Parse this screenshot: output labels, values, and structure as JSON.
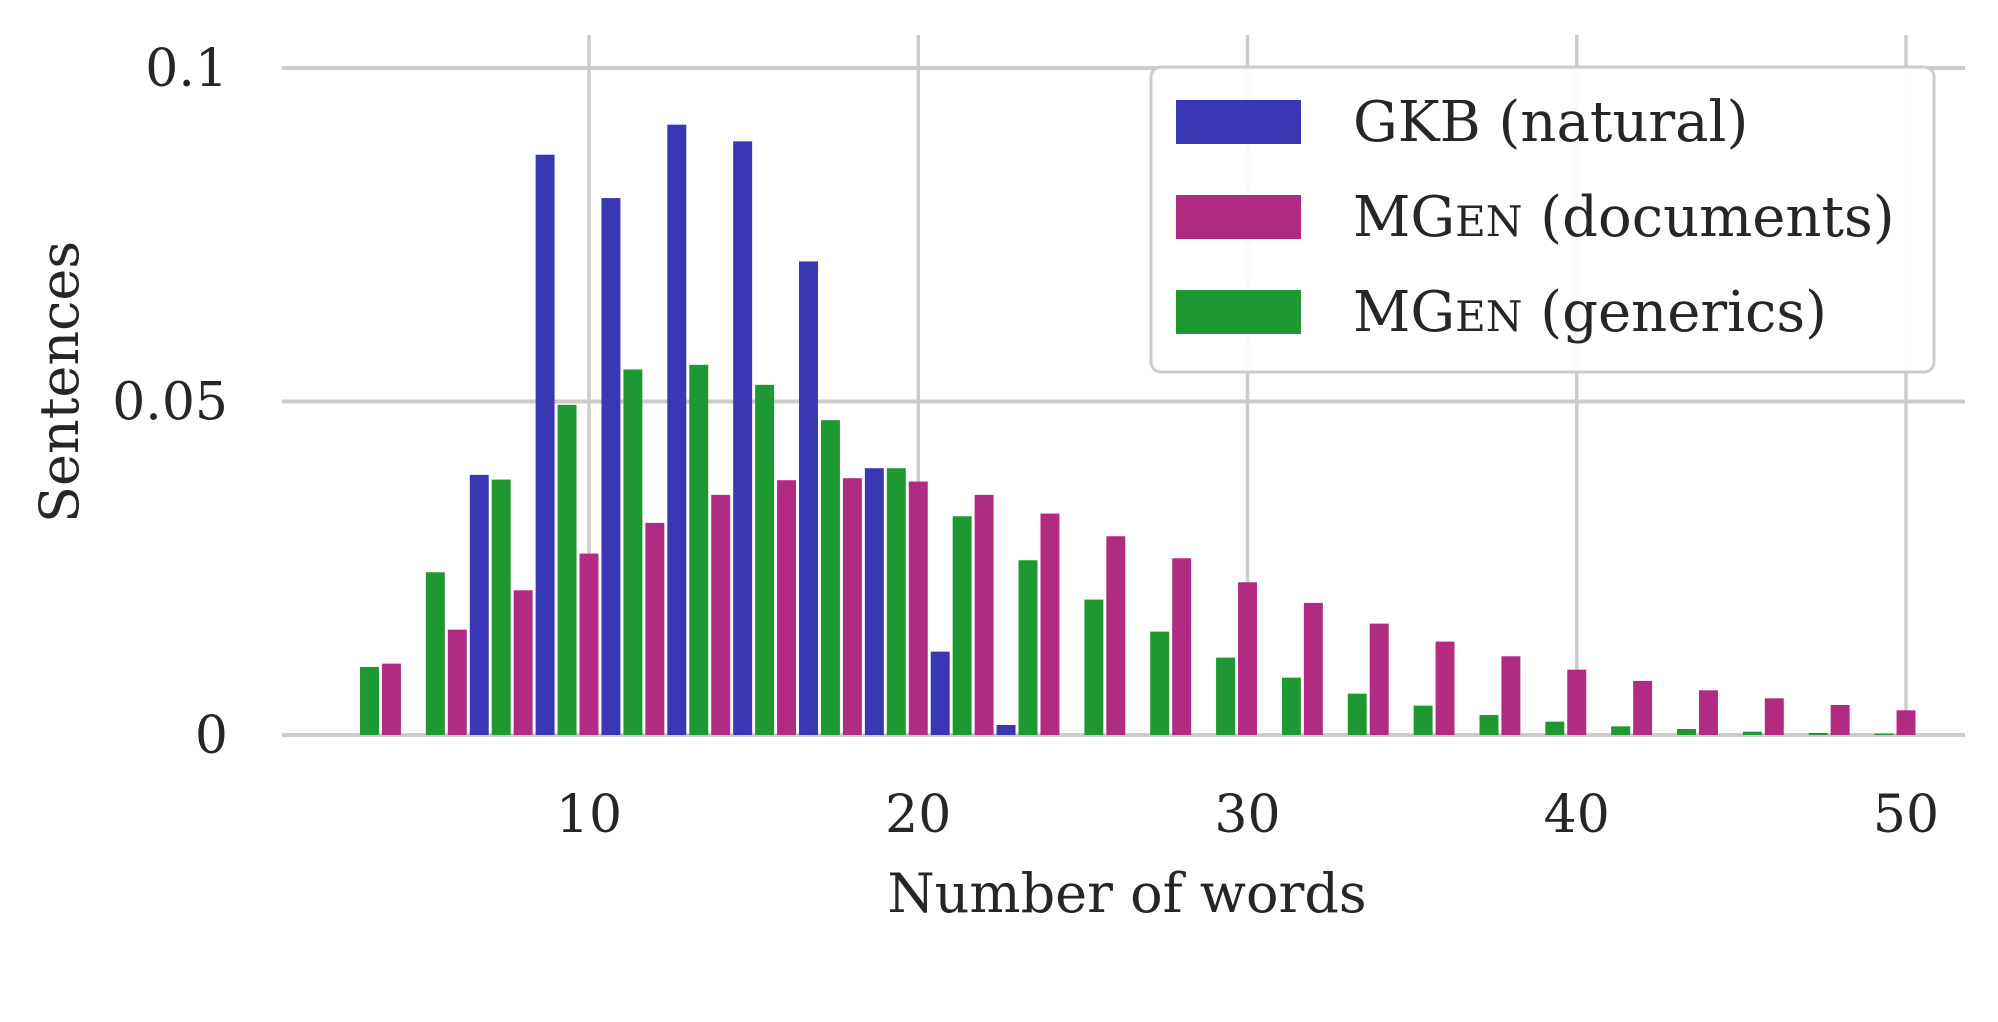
{
  "chart_data": {
    "type": "bar",
    "xlabel": "Number of words",
    "ylabel": "Sentences",
    "xlim": [
      1,
      52
    ],
    "ylim": [
      0,
      0.1
    ],
    "x_ticks": [
      10,
      20,
      30,
      40,
      50
    ],
    "x_tick_labels": [
      "10",
      "20",
      "30",
      "40",
      "50"
    ],
    "y_ticks": [
      0,
      0.05,
      0.1
    ],
    "y_tick_labels": [
      "0",
      "0.05",
      "0.1"
    ],
    "grid": true,
    "legend_position": "top-right",
    "bin_width": 2,
    "x": [
      4,
      6,
      8,
      10,
      12,
      14,
      16,
      18,
      20,
      22,
      24,
      26,
      28,
      30,
      32,
      34,
      36,
      38,
      40,
      42,
      44,
      46,
      48,
      50
    ],
    "series": [
      {
        "name": "GKB (natural)",
        "legend_main": "GKB (natural)",
        "legend_sc": "",
        "legend_rest": "",
        "color": "#3a37b4",
        "values": [
          0.0,
          0.039,
          0.087,
          0.0805,
          0.0915,
          0.089,
          0.071,
          0.04,
          0.0125,
          0.0015,
          0,
          0,
          0,
          0,
          0,
          0,
          0,
          0,
          0,
          0,
          0,
          0,
          0,
          0
        ]
      },
      {
        "name": "MGen (documents)",
        "legend_main": "MG",
        "legend_sc": "EN",
        "legend_rest": " (documents)",
        "color": "#b02b81",
        "values": [
          0.0107,
          0.0158,
          0.0217,
          0.0272,
          0.0318,
          0.036,
          0.0382,
          0.0385,
          0.038,
          0.036,
          0.0332,
          0.0298,
          0.0265,
          0.0229,
          0.0198,
          0.0167,
          0.014,
          0.0118,
          0.0098,
          0.0081,
          0.0067,
          0.0055,
          0.0045,
          0.0037
        ]
      },
      {
        "name": "MGen (generics)",
        "legend_main": "MG",
        "legend_sc": "EN",
        "legend_rest": " (generics)",
        "color": "#1e9931",
        "values": [
          0.0102,
          0.0244,
          0.0383,
          0.0495,
          0.0548,
          0.0555,
          0.0525,
          0.0472,
          0.04,
          0.0328,
          0.0262,
          0.0203,
          0.0155,
          0.0116,
          0.0086,
          0.0062,
          0.0044,
          0.003,
          0.002,
          0.0013,
          0.0009,
          0.0005,
          0.0003,
          0.0002
        ]
      }
    ]
  }
}
